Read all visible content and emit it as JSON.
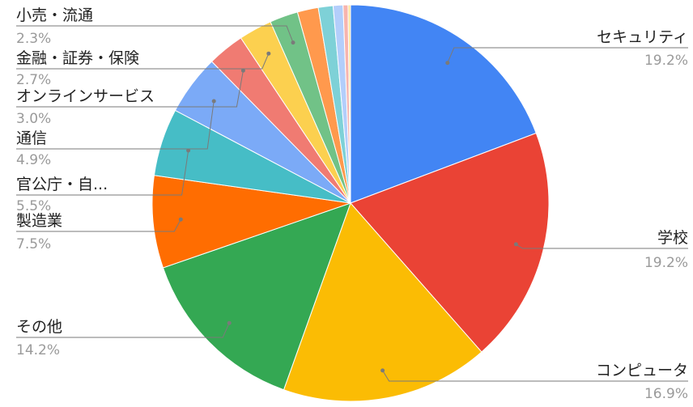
{
  "chart_data": {
    "type": "pie",
    "title": "",
    "slices": [
      {
        "label": "セキュリティ",
        "pct_text": "19.2%",
        "value": 19.2,
        "color": "#4285F4"
      },
      {
        "label": "学校",
        "pct_text": "19.2%",
        "value": 19.2,
        "color": "#EA4335"
      },
      {
        "label": "コンピュータ",
        "pct_text": "16.9%",
        "value": 16.9,
        "color": "#FBBC04"
      },
      {
        "label": "その他",
        "pct_text": "14.2%",
        "value": 14.2,
        "color": "#34A853"
      },
      {
        "label": "製造業",
        "pct_text": "7.5%",
        "value": 7.5,
        "color": "#FF6D01"
      },
      {
        "label": "官公庁・自...",
        "pct_text": "5.5%",
        "value": 5.5,
        "color": "#46BDC6"
      },
      {
        "label": "通信",
        "pct_text": "4.9%",
        "value": 4.9,
        "color": "#7BAAF7"
      },
      {
        "label": "オンラインサービス",
        "pct_text": "3.0%",
        "value": 3.0,
        "color": "#F07B72"
      },
      {
        "label": "金融・証券・保険",
        "pct_text": "2.7%",
        "value": 2.7,
        "color": "#FCD04F"
      },
      {
        "label": "小売・流通",
        "pct_text": "2.3%",
        "value": 2.3,
        "color": "#71C287"
      },
      {
        "label": "",
        "pct_text": "",
        "value": 1.7,
        "color": "#FF994D"
      },
      {
        "label": "",
        "pct_text": "",
        "value": 1.2,
        "color": "#7ED1D7"
      },
      {
        "label": "",
        "pct_text": "",
        "value": 0.8,
        "color": "#B3CEFB"
      },
      {
        "label": "",
        "pct_text": "",
        "value": 0.4,
        "color": "#F7B4AE"
      },
      {
        "label": "",
        "pct_text": "",
        "value": 0.2,
        "color": "#FDE49B"
      }
    ]
  }
}
